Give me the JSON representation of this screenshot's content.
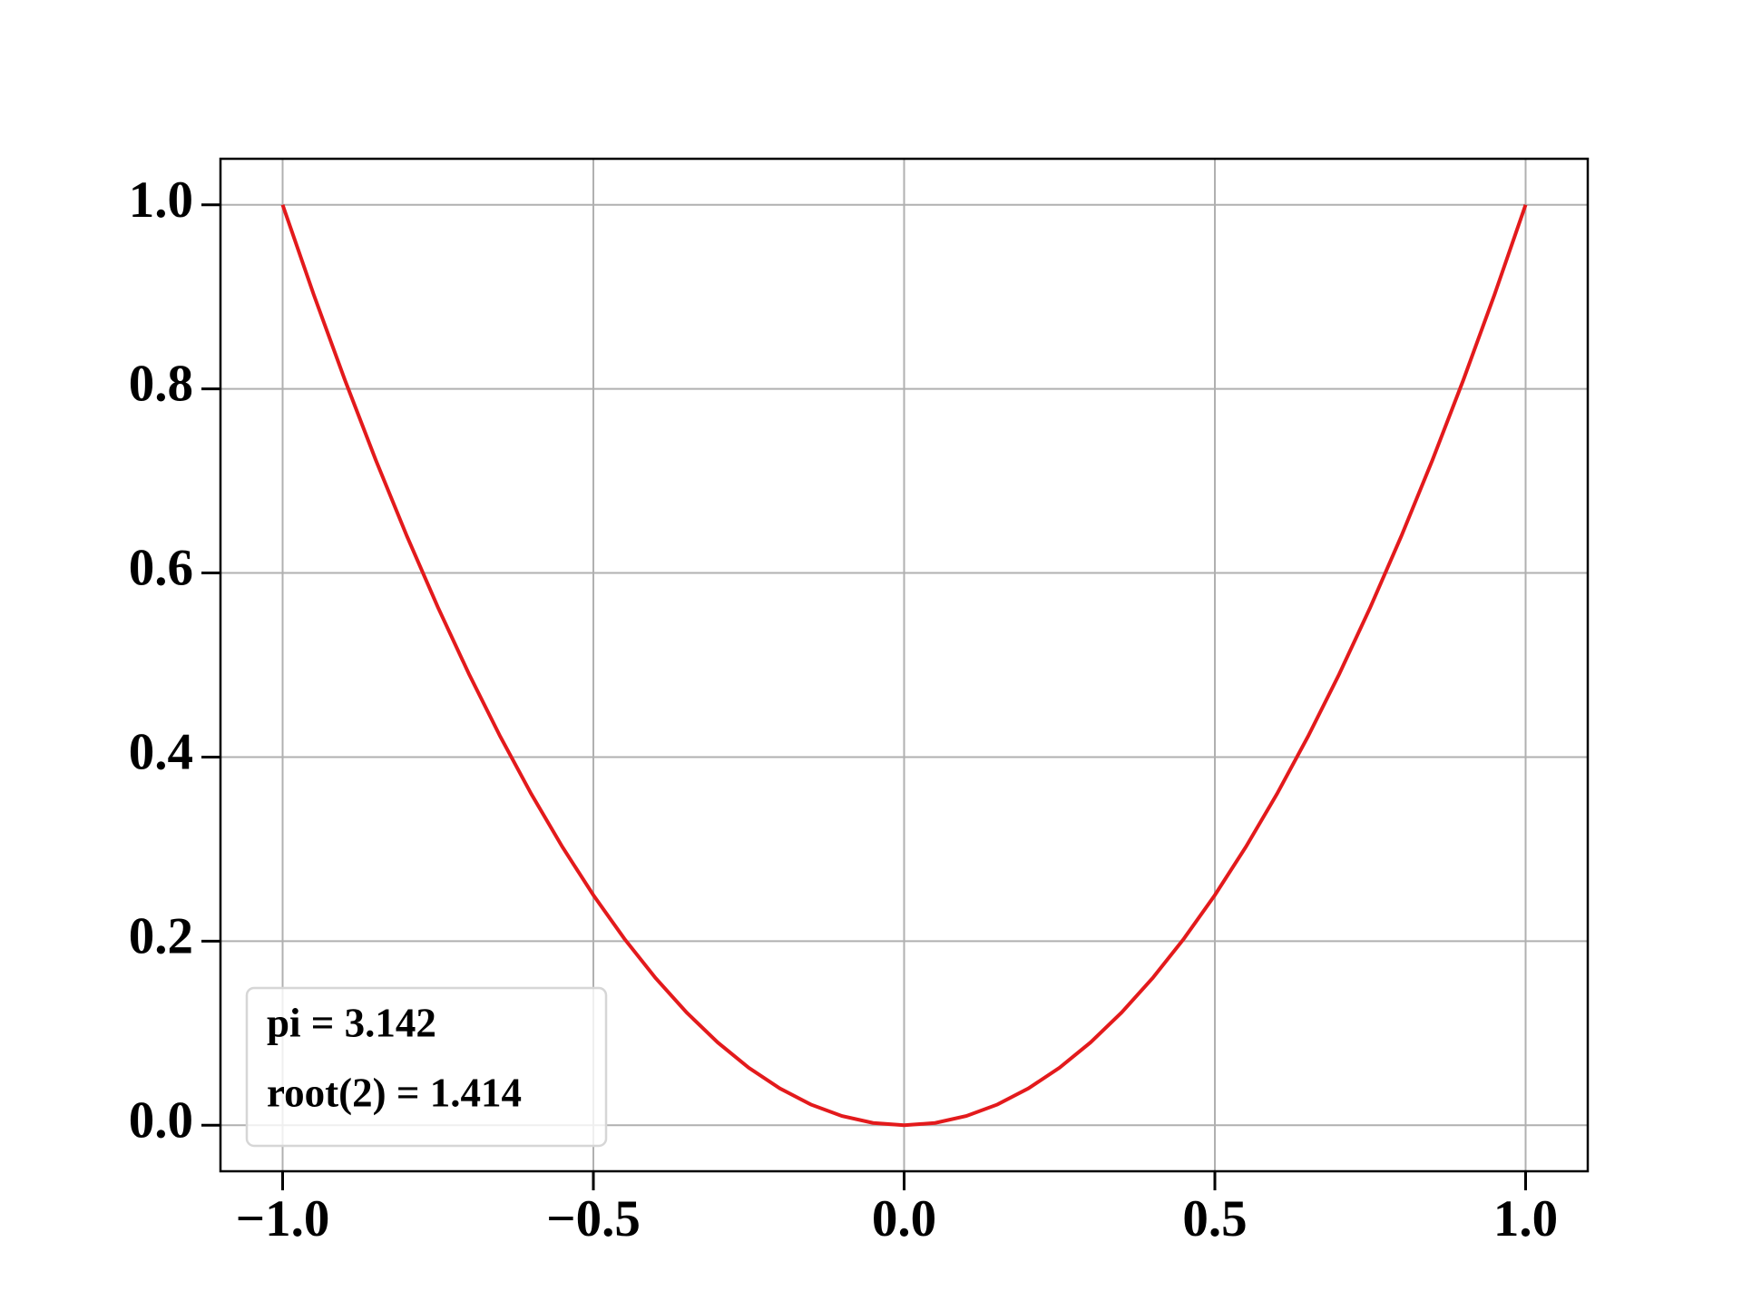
{
  "chart_data": {
    "type": "line",
    "x": [
      -1,
      -0.95,
      -0.9,
      -0.85,
      -0.8,
      -0.75,
      -0.7,
      -0.65,
      -0.6,
      -0.55,
      -0.5,
      -0.45,
      -0.4,
      -0.35,
      -0.3,
      -0.25,
      -0.2,
      -0.15,
      -0.1,
      -0.05,
      0,
      0.05,
      0.1,
      0.15,
      0.2,
      0.25,
      0.3,
      0.35,
      0.4,
      0.45,
      0.5,
      0.55,
      0.6,
      0.65,
      0.7,
      0.75,
      0.8,
      0.85,
      0.9,
      0.95,
      1
    ],
    "values": [
      1,
      0.9025,
      0.81,
      0.7225,
      0.64,
      0.5625,
      0.49,
      0.4225,
      0.36,
      0.3025,
      0.25,
      0.2025,
      0.16,
      0.1225,
      0.09,
      0.0625,
      0.04,
      0.0225,
      0.01,
      0.0025,
      0,
      0.0025,
      0.01,
      0.0225,
      0.04,
      0.0625,
      0.09,
      0.1225,
      0.16,
      0.2025,
      0.25,
      0.3025,
      0.36,
      0.4225,
      0.49,
      0.5625,
      0.64,
      0.7225,
      0.81,
      0.9025,
      1
    ],
    "color": "#e31a1c",
    "xlim": [
      -1.1,
      1.1
    ],
    "xticks": [
      {
        "value": -1,
        "label": "−1.0"
      },
      {
        "value": -0.5,
        "label": "−0.5"
      },
      {
        "value": 0,
        "label": "0.0"
      },
      0.5,
      {
        "value": 1,
        "label": "1.0"
      }
    ],
    "ylim": [
      -0.05,
      1.05
    ],
    "yticks": [
      {
        "value": 0,
        "label": "0.0"
      },
      0.2,
      0.4,
      0.6,
      0.8,
      {
        "value": 1,
        "label": "1.0"
      }
    ],
    "grid": true,
    "annotations": [
      "pi = 3.142",
      "root(2) = 1.414"
    ]
  }
}
